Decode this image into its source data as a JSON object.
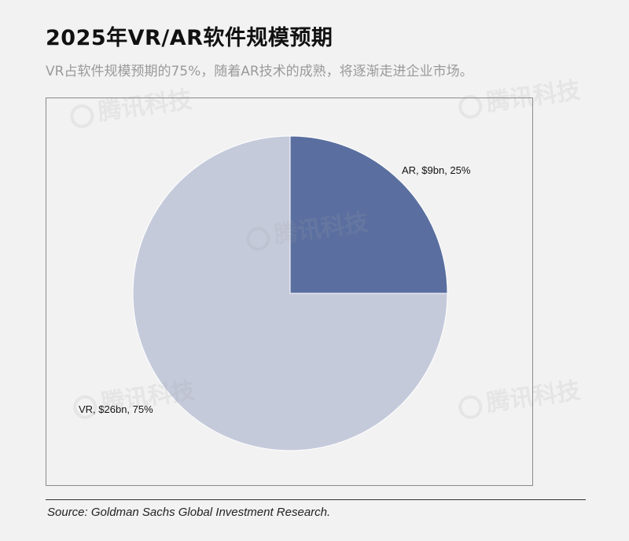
{
  "header": {
    "title": "2025年VR/AR软件规模预期",
    "subtitle": "VR占软件规模预期的75%，随着AR技术的成熟，将逐渐走进企业市场。"
  },
  "watermark": {
    "text": "腾讯科技"
  },
  "chart_data": {
    "type": "pie",
    "title": "2025年VR/AR软件规模预期",
    "slices": [
      {
        "name": "AR",
        "value": 9,
        "unit": "$bn",
        "percent": 25,
        "label": "AR, $9bn, 25%",
        "color": "#5a6fa0"
      },
      {
        "name": "VR",
        "value": 26,
        "unit": "$bn",
        "percent": 75,
        "label": "VR, $26bn, 75%",
        "color": "#c5cadb"
      }
    ],
    "start_angle_deg": 0,
    "direction": "clockwise",
    "legend": "none"
  },
  "footer": {
    "source": "Source: Goldman Sachs Global Investment Research."
  }
}
